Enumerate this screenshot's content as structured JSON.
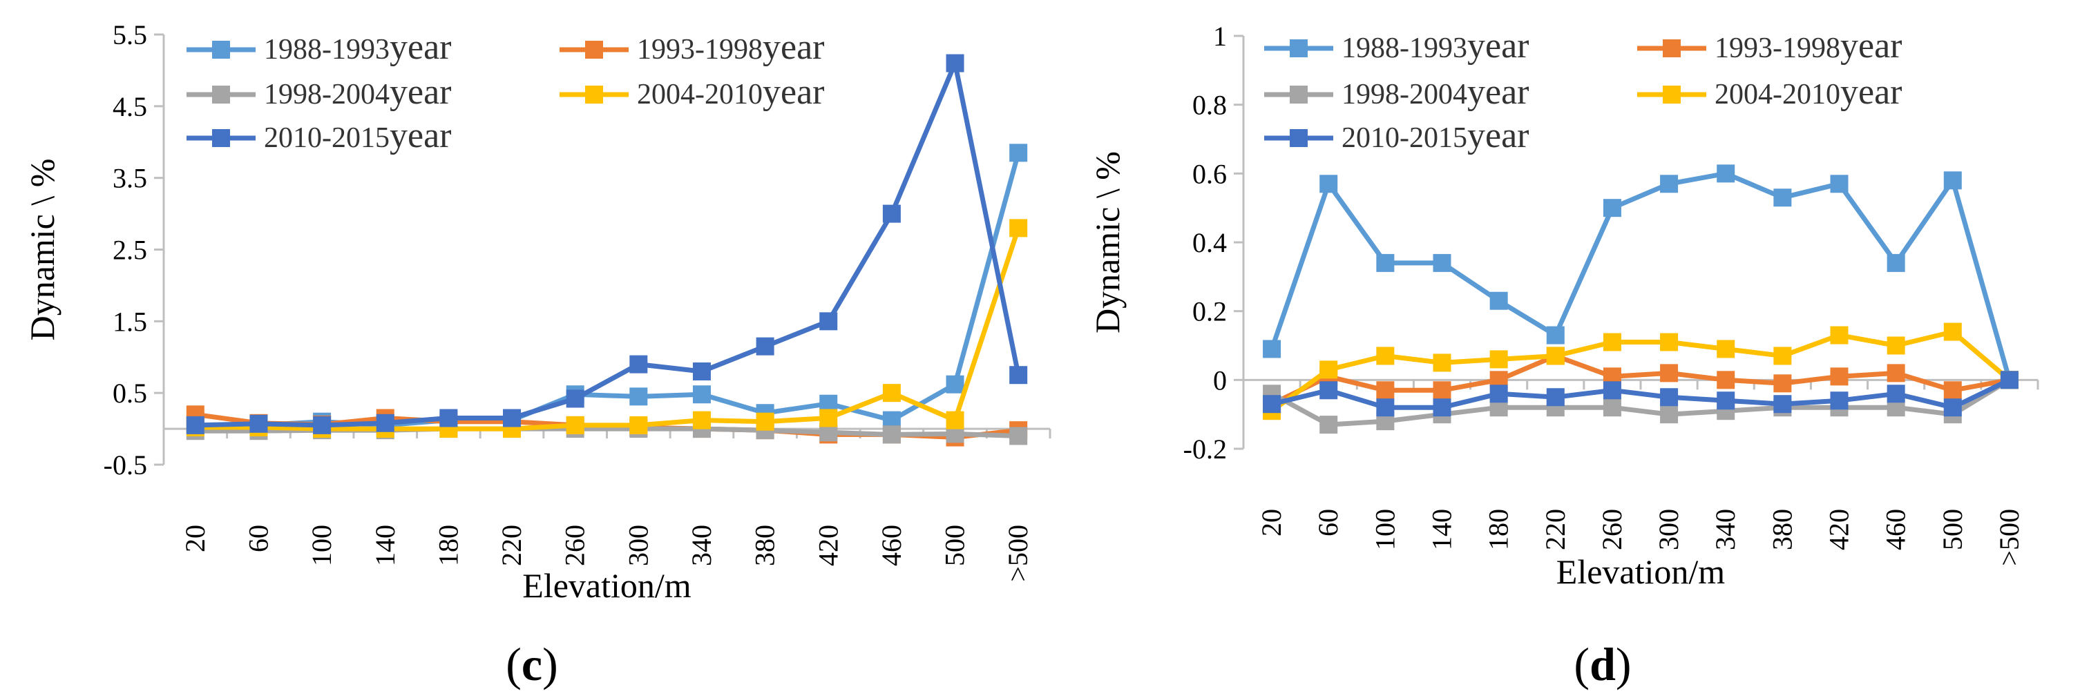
{
  "figure": {
    "categories": [
      "20",
      "60",
      "100",
      "140",
      "180",
      "220",
      "260",
      "300",
      "340",
      "380",
      "420",
      "460",
      "500",
      ">500"
    ],
    "legend_suffix": "year",
    "xlabel": "Elevation/m",
    "ylabel": "Dynamic \\ %"
  },
  "chart_data": [
    {
      "type": "line",
      "panel": "c",
      "caption": "(c)",
      "caption_letter": "c",
      "xlabel": "Elevation/m",
      "ylabel": "Dynamic \\ %",
      "categories": [
        "20",
        "60",
        "100",
        "140",
        "180",
        "220",
        "260",
        "300",
        "340",
        "380",
        "420",
        "460",
        "500",
        ">500"
      ],
      "ylim": [
        -0.5,
        5.5
      ],
      "yticks": [
        -0.5,
        0.5,
        1.5,
        2.5,
        3.5,
        4.5,
        5.5
      ],
      "ytick_labels": [
        "-0.5",
        "0.5",
        "1.5",
        "2.5",
        "3.5",
        "4.5",
        "5.5"
      ],
      "grid": false,
      "legend": "top-left",
      "series": [
        {
          "name": "1988-1993",
          "color": "#5B9BD5",
          "values": [
            0.05,
            0.05,
            0.1,
            0.05,
            0.12,
            0.12,
            0.48,
            0.45,
            0.48,
            0.22,
            0.35,
            0.12,
            0.62,
            3.85
          ]
        },
        {
          "name": "1993-1998",
          "color": "#ED7D31",
          "values": [
            0.2,
            0.08,
            0.06,
            0.15,
            0.1,
            0.1,
            0.05,
            0.02,
            0.0,
            -0.02,
            -0.08,
            -0.08,
            -0.12,
            -0.02
          ]
        },
        {
          "name": "1998-2004",
          "color": "#A5A5A5",
          "values": [
            -0.03,
            -0.03,
            -0.02,
            -0.02,
            0.0,
            0.0,
            0.0,
            0.0,
            0.0,
            -0.02,
            -0.05,
            -0.08,
            -0.07,
            -0.1
          ]
        },
        {
          "name": "2004-2010",
          "color": "#FFC000",
          "values": [
            0.02,
            0.02,
            0.0,
            0.0,
            0.0,
            0.0,
            0.05,
            0.05,
            0.12,
            0.1,
            0.15,
            0.5,
            0.12,
            2.8
          ]
        },
        {
          "name": "2010-2015",
          "color": "#4472C4",
          "values": [
            0.05,
            0.07,
            0.05,
            0.08,
            0.15,
            0.15,
            0.42,
            0.9,
            0.8,
            1.15,
            1.5,
            3.0,
            5.1,
            0.75
          ]
        }
      ]
    },
    {
      "type": "line",
      "panel": "d",
      "caption": "(d)",
      "caption_letter": "d",
      "xlabel": "Elevation/m",
      "ylabel": "Dynamic \\ %",
      "categories": [
        "20",
        "60",
        "100",
        "140",
        "180",
        "220",
        "260",
        "300",
        "340",
        "380",
        "420",
        "460",
        "500",
        ">500"
      ],
      "ylim": [
        -0.2,
        1.0
      ],
      "yticks": [
        -0.2,
        0,
        0.2,
        0.4,
        0.6,
        0.8,
        1.0
      ],
      "ytick_labels": [
        "-0.2",
        "0",
        "0.2",
        "0.4",
        "0.6",
        "0.8",
        "1"
      ],
      "grid": false,
      "legend": "top-left",
      "series": [
        {
          "name": "1988-1993",
          "color": "#5B9BD5",
          "values": [
            0.09,
            0.57,
            0.34,
            0.34,
            0.23,
            0.13,
            0.5,
            0.57,
            0.6,
            0.53,
            0.57,
            0.34,
            0.58,
            0.0
          ]
        },
        {
          "name": "1993-1998",
          "color": "#ED7D31",
          "values": [
            -0.07,
            0.01,
            -0.03,
            -0.03,
            0.0,
            0.07,
            0.01,
            0.02,
            0.0,
            -0.01,
            0.01,
            0.02,
            -0.03,
            0.0
          ]
        },
        {
          "name": "1998-2004",
          "color": "#A5A5A5",
          "values": [
            -0.04,
            -0.13,
            -0.12,
            -0.1,
            -0.08,
            -0.08,
            -0.08,
            -0.1,
            -0.09,
            -0.08,
            -0.08,
            -0.08,
            -0.1,
            0.0
          ]
        },
        {
          "name": "2004-2010",
          "color": "#FFC000",
          "values": [
            -0.09,
            0.03,
            0.07,
            0.05,
            0.06,
            0.07,
            0.11,
            0.11,
            0.09,
            0.07,
            0.13,
            0.1,
            0.14,
            0.0
          ]
        },
        {
          "name": "2010-2015",
          "color": "#4472C4",
          "values": [
            -0.07,
            -0.03,
            -0.08,
            -0.08,
            -0.04,
            -0.05,
            -0.03,
            -0.05,
            -0.06,
            -0.07,
            -0.06,
            -0.04,
            -0.08,
            0.0
          ]
        }
      ]
    }
  ]
}
